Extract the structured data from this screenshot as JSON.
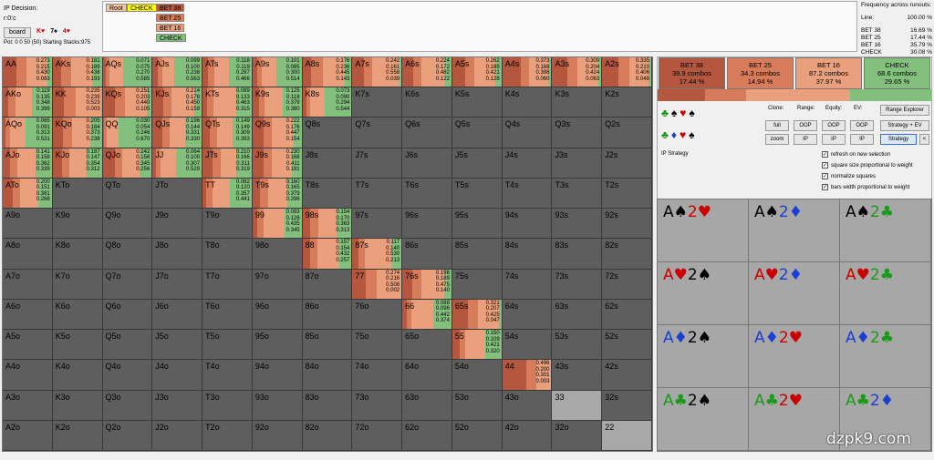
{
  "top": {
    "decision_label": "IP Decision:",
    "node_label": "r:0:c",
    "board_button": "board",
    "board_cards": [
      {
        "rank": "K",
        "suit": "♥",
        "color": "#c00"
      },
      {
        "rank": "7",
        "suit": "♠",
        "color": "#000"
      },
      {
        "rank": "4",
        "suit": "♥",
        "color": "#c00"
      }
    ],
    "pot_text": "Pot: 0 0 50 (50) Starting Stacks:975"
  },
  "tree": {
    "root": "Root",
    "check": "CHECK",
    "children": [
      "BET 38",
      "BET 25",
      "BET 16",
      "CHECK"
    ]
  },
  "frequency": {
    "title": "Frequency across runouts:",
    "line_label": "Line:",
    "line_value": "100.00 %",
    "rows": [
      {
        "name": "BET 38",
        "value": "16.69 %"
      },
      {
        "name": "BET 25",
        "value": "17.44 %"
      },
      {
        "name": "BET 16",
        "value": "35.79 %"
      },
      {
        "name": "CHECK",
        "value": "30.08 %"
      }
    ]
  },
  "colors": {
    "bet38": "#b5573f",
    "bet25": "#d77c5a",
    "bet16": "#eaa07c",
    "check": "#83c07e"
  },
  "matrix": [
    [
      "AA",
      "AKs",
      "AQs",
      "AJs",
      "ATs",
      "A9s",
      "A8s",
      "A7s",
      "A6s",
      "A5s",
      "A4s",
      "A3s",
      "A2s"
    ],
    [
      "AKo",
      "KK",
      "KQs",
      "KJs",
      "KTs",
      "K9s",
      "K8s",
      "K7s",
      "K6s",
      "K5s",
      "K4s",
      "K3s",
      "K2s"
    ],
    [
      "AQo",
      "KQo",
      "QQ",
      "QJs",
      "QTs",
      "Q9s",
      "Q8s",
      "Q7s",
      "Q6s",
      "Q5s",
      "Q4s",
      "Q3s",
      "Q2s"
    ],
    [
      "AJo",
      "KJo",
      "QJo",
      "JJ",
      "JTs",
      "J9s",
      "J8s",
      "J7s",
      "J6s",
      "J5s",
      "J4s",
      "J3s",
      "J2s"
    ],
    [
      "ATo",
      "KTo",
      "QTo",
      "JTo",
      "TT",
      "T9s",
      "T8s",
      "T7s",
      "T6s",
      "T5s",
      "T4s",
      "T3s",
      "T2s"
    ],
    [
      "A9o",
      "K9o",
      "Q9o",
      "J9o",
      "T9o",
      "99",
      "98s",
      "97s",
      "96s",
      "95s",
      "94s",
      "93s",
      "92s"
    ],
    [
      "A8o",
      "K8o",
      "Q8o",
      "J8o",
      "T8o",
      "98o",
      "88",
      "87s",
      "86s",
      "85s",
      "84s",
      "83s",
      "82s"
    ],
    [
      "A7o",
      "K7o",
      "Q7o",
      "J7o",
      "T7o",
      "97o",
      "87o",
      "77",
      "76s",
      "75s",
      "74s",
      "73s",
      "72s"
    ],
    [
      "A6o",
      "K6o",
      "Q6o",
      "J6o",
      "T6o",
      "96o",
      "86o",
      "76o",
      "66",
      "65s",
      "64s",
      "63s",
      "62s"
    ],
    [
      "A5o",
      "K5o",
      "Q5o",
      "J5o",
      "T5o",
      "95o",
      "85o",
      "75o",
      "65o",
      "55",
      "54s",
      "53s",
      "52s"
    ],
    [
      "A4o",
      "K4o",
      "Q4o",
      "J4o",
      "T4o",
      "94o",
      "84o",
      "74o",
      "64o",
      "54o",
      "44",
      "43s",
      "42s"
    ],
    [
      "A3o",
      "K3o",
      "Q3o",
      "J3o",
      "T3o",
      "93o",
      "83o",
      "73o",
      "63o",
      "53o",
      "43o",
      "33",
      "32s"
    ],
    [
      "A2o",
      "K2o",
      "Q2o",
      "J2o",
      "T2o",
      "92o",
      "82o",
      "72o",
      "62o",
      "52o",
      "42o",
      "32o",
      "22"
    ]
  ],
  "strategy": {
    "AA": [
      "0.273",
      "0.215",
      "0.430",
      "0.083"
    ],
    "AKs": [
      "0.181",
      "0.189",
      "0.438",
      "0.193"
    ],
    "AQs": [
      "0.071",
      "0.075",
      "0.270",
      "0.585"
    ],
    "AJs": [
      "0.099",
      "0.100",
      "0.238",
      "0.563"
    ],
    "ATs": [
      "0.118",
      "0.119",
      "0.297",
      "0.466"
    ],
    "A9s": [
      "0.101",
      "0.085",
      "0.300",
      "0.514"
    ],
    "A8s": [
      "0.176",
      "0.236",
      "0.445",
      "0.143"
    ],
    "A7s": [
      "0.242",
      "0.161",
      "0.558",
      "0.039"
    ],
    "A6s": [
      "0.224",
      "0.172",
      "0.482",
      "0.122"
    ],
    "A5s": [
      "0.262",
      "0.189",
      "0.421",
      "0.128"
    ],
    "A4s": [
      "0.373",
      "0.168",
      "0.398",
      "0.060"
    ],
    "A3s": [
      "0.309",
      "0.204",
      "0.424",
      "0.063"
    ],
    "A2s": [
      "0.335",
      "0.210",
      "0.406",
      "0.048"
    ],
    "AKo": [
      "0.119",
      "0.135",
      "0.348",
      "0.399"
    ],
    "KK": [
      "0.235",
      "0.239",
      "0.523",
      "0.003"
    ],
    "KQs": [
      "0.251",
      "0.203",
      "0.440",
      "0.105"
    ],
    "KJs": [
      "0.214",
      "0.178",
      "0.450",
      "0.159"
    ],
    "KTs": [
      "0.089",
      "0.133",
      "0.463",
      "0.315"
    ],
    "K9s": [
      "0.125",
      "0.118",
      "0.379",
      "0.380"
    ],
    "K8s": [
      "0.073",
      "0.090",
      "0.294",
      "0.544"
    ],
    "AQo": [
      "0.065",
      "0.091",
      "0.313",
      "0.531"
    ],
    "KQo": [
      "0.205",
      "0.184",
      "0.373",
      "0.238"
    ],
    "QQ": [
      "0.030",
      "0.054",
      "0.246",
      "0.670"
    ],
    "QJs": [
      "0.196",
      "0.144",
      "0.331",
      "0.330"
    ],
    "QTs": [
      "0.149",
      "0.149",
      "0.309",
      "0.393"
    ],
    "Q9s": [
      "0.222",
      "0.176",
      "0.447",
      "0.154"
    ],
    "AJo": [
      "0.141",
      "0.158",
      "0.362",
      "0.339"
    ],
    "KJo": [
      "0.187",
      "0.147",
      "0.354",
      "0.312"
    ],
    "QJo": [
      "0.242",
      "0.158",
      "0.345",
      "0.256"
    ],
    "JJ": [
      "0.064",
      "0.100",
      "0.307",
      "0.529"
    ],
    "JTs": [
      "0.210",
      "0.166",
      "0.311",
      "0.319"
    ],
    "J9s": [
      "0.230",
      "0.168",
      "0.411",
      "0.191"
    ],
    "ATo": [
      "0.200",
      "0.151",
      "0.381",
      "0.268"
    ],
    "TT": [
      "0.082",
      "0.120",
      "0.357",
      "0.441"
    ],
    "T9s": [
      "0.160",
      "0.165",
      "0.379",
      "0.296"
    ],
    "99": [
      "0.093",
      "0.128",
      "0.435",
      "0.345"
    ],
    "98s": [
      "0.154",
      "0.170",
      "0.363",
      "0.313"
    ],
    "88": [
      "0.157",
      "0.154",
      "0.432",
      "0.257"
    ],
    "87s": [
      "0.117",
      "0.140",
      "0.530",
      "0.213"
    ],
    "77": [
      "0.274",
      "0.216",
      "0.508",
      "0.002"
    ],
    "76s": [
      "0.196",
      "0.189",
      "0.475",
      "0.140"
    ],
    "66": [
      "0.088",
      "0.096",
      "0.442",
      "0.374"
    ],
    "65s": [
      "0.321",
      "0.207",
      "0.425",
      "0.047"
    ],
    "55": [
      "0.150",
      "0.109",
      "0.421",
      "0.320"
    ],
    "44": [
      "0.496",
      "0.200",
      "0.301",
      "0.003"
    ]
  },
  "right_panel": {
    "actions": [
      {
        "name": "BET 38",
        "combos": "39.9 combos",
        "pct": "17.44 %",
        "color": "#b5573f"
      },
      {
        "name": "BET 25",
        "combos": "34.3 combos",
        "pct": "14.94 %",
        "color": "#d77c5a"
      },
      {
        "name": "BET 16",
        "combos": "87.2 combos",
        "pct": "37.97 %",
        "color": "#eaa07c"
      },
      {
        "name": "CHECK",
        "combos": "68.6 combos",
        "pct": "29.65 %",
        "color": "#83c07e"
      }
    ],
    "clone_label": "Clone:",
    "range_label": "Range:",
    "equity_label": "Equity:",
    "ev_label": "EV:",
    "full_btn": "full",
    "zoom_btn": "zoom",
    "oop1": "OOP",
    "ip1": "IP",
    "oop2": "OOP",
    "ip2": "IP",
    "oop3": "OOP",
    "ip3": "IP",
    "range_explorer": "Range Explorer",
    "strategy_ev": "Strategy + EV",
    "strategy": "Strategy",
    "less_btn": "<",
    "ip_strategy": "IP Strategy",
    "checks": [
      "refresh on new selection",
      "square size proportional to weight",
      "normalize squares",
      "bars width proportional to weight"
    ]
  },
  "combos": [
    [
      {
        "r": "A",
        "s": "♠",
        "c": "s"
      },
      {
        "r": "2",
        "s": "♥",
        "c": "h"
      }
    ],
    [
      {
        "r": "A",
        "s": "♠",
        "c": "s"
      },
      {
        "r": "2",
        "s": "♦",
        "c": "d"
      }
    ],
    [
      {
        "r": "A",
        "s": "♠",
        "c": "s"
      },
      {
        "r": "2",
        "s": "♣",
        "c": "c"
      }
    ],
    [
      {
        "r": "A",
        "s": "♥",
        "c": "h"
      },
      {
        "r": "2",
        "s": "♠",
        "c": "s"
      }
    ],
    [
      {
        "r": "A",
        "s": "♥",
        "c": "h"
      },
      {
        "r": "2",
        "s": "♦",
        "c": "d"
      }
    ],
    [
      {
        "r": "A",
        "s": "♥",
        "c": "h"
      },
      {
        "r": "2",
        "s": "♣",
        "c": "c"
      }
    ],
    [
      {
        "r": "A",
        "s": "♦",
        "c": "d"
      },
      {
        "r": "2",
        "s": "♠",
        "c": "s"
      }
    ],
    [
      {
        "r": "A",
        "s": "♦",
        "c": "d"
      },
      {
        "r": "2",
        "s": "♥",
        "c": "h"
      }
    ],
    [
      {
        "r": "A",
        "s": "♦",
        "c": "d"
      },
      {
        "r": "2",
        "s": "♣",
        "c": "c"
      }
    ],
    [
      {
        "r": "A",
        "s": "♣",
        "c": "c"
      },
      {
        "r": "2",
        "s": "♠",
        "c": "s"
      }
    ],
    [
      {
        "r": "A",
        "s": "♣",
        "c": "c"
      },
      {
        "r": "2",
        "s": "♥",
        "c": "h"
      }
    ],
    [
      {
        "r": "A",
        "s": "♣",
        "c": "c"
      },
      {
        "r": "2",
        "s": "♦",
        "c": "d"
      }
    ]
  ],
  "watermark": "dzpk9.com"
}
